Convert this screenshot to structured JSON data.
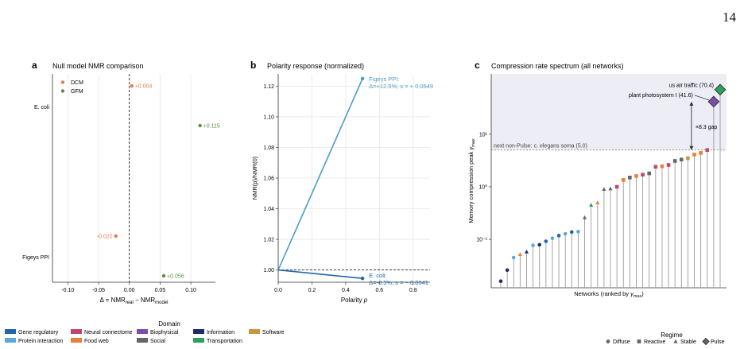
{
  "page_number": "14",
  "colors": {
    "dcm": "#E07B4F",
    "gfm": "#5A8F3D",
    "polarity_line": "#4A9CC9",
    "ecoli_line": "#2166AC",
    "shade": "#ECEDF5",
    "stem": "#9A9A9A",
    "zero_line": "#222222"
  },
  "panels": {
    "a": {
      "letter": "a",
      "title": "Null model NMR comparison"
    },
    "b": {
      "letter": "b",
      "title": "Polarity response (normalized)"
    },
    "c": {
      "letter": "c",
      "title": "Compression rate spectrum (all networks)"
    }
  },
  "legend_domain": {
    "title": "Domain",
    "items": [
      {
        "label": "Gene regulatory",
        "color": "#2166AC"
      },
      {
        "label": "Protein interaction",
        "color": "#5AA8DC"
      },
      {
        "label": "Neural connectome",
        "color": "#C0466E"
      },
      {
        "label": "Food web",
        "color": "#E8803A"
      },
      {
        "label": "Biophysical",
        "color": "#7B4FA8"
      },
      {
        "label": "Social",
        "color": "#666666"
      },
      {
        "label": "Information",
        "color": "#1F2A6B"
      },
      {
        "label": "Transportation",
        "color": "#2E9E5B"
      },
      {
        "label": "Software",
        "color": "#C8963E"
      }
    ]
  },
  "legend_regime": {
    "title": "Regime",
    "items": [
      {
        "label": "Diffuse",
        "shape": "circle"
      },
      {
        "label": "Reactive",
        "shape": "square"
      },
      {
        "label": "Stable",
        "shape": "triangle"
      },
      {
        "label": "Pulse",
        "shape": "diamond"
      }
    ]
  },
  "chart_data": [
    {
      "type": "scatter",
      "panel": "a",
      "title": "Null model NMR comparison",
      "xlabel": "Δ = NMR_real − NMR_model",
      "xlabel_parts": {
        "pre": "Δ = NMR",
        "sub1": "real",
        "mid": " − NMR",
        "sub2": "model"
      },
      "ylabel": "",
      "xlim": [
        -0.125,
        0.14
      ],
      "xticks": [
        "-0.10",
        "-0.05",
        "0.00",
        "0.05",
        "0.10"
      ],
      "xtick_values": [
        -0.1,
        -0.05,
        0.0,
        0.05,
        0.1
      ],
      "categories": [
        "E. coli",
        "Figeys PPI"
      ],
      "reference_line": 0,
      "grid": true,
      "legend_position": "top-left",
      "series": [
        {
          "name": "DCM",
          "color": "#E07B4F",
          "values": [
            0.004,
            -0.022
          ],
          "labels": [
            "+0.004",
            "-0.022"
          ]
        },
        {
          "name": "GFM",
          "color": "#5A8F3D",
          "values": [
            0.115,
            0.056
          ],
          "labels": [
            "+0.115",
            "+0.056"
          ]
        }
      ]
    },
    {
      "type": "line",
      "panel": "b",
      "title": "Polarity response (normalized)",
      "xlabel": "Polarity p",
      "xlabel_parts": {
        "pre": "Polarity ",
        "italic": "p"
      },
      "ylabel": "NMR(p)/NMR(0)",
      "xlim": [
        0.0,
        0.9
      ],
      "ylim": [
        0.992,
        1.128
      ],
      "xticks": [
        "0.0",
        "0.2",
        "0.4",
        "0.6",
        "0.8"
      ],
      "xtick_values": [
        0.0,
        0.2,
        0.4,
        0.6,
        0.8
      ],
      "yticks": [
        "1.00",
        "1.02",
        "1.04",
        "1.06",
        "1.08",
        "1.10",
        "1.12"
      ],
      "ytick_values": [
        1.0,
        1.02,
        1.04,
        1.06,
        1.08,
        1.1,
        1.12
      ],
      "reference_line": 1.0,
      "grid": true,
      "series": [
        {
          "name": "Figeys PPI",
          "color": "#4A9CC9",
          "x": [
            0.0,
            0.5
          ],
          "y": [
            1.0,
            1.125
          ],
          "annotation": [
            "Figeys PPI:",
            "Δ=+12.5%; s = + 0.0549"
          ]
        },
        {
          "name": "E. coli",
          "color": "#2166AC",
          "x": [
            0.0,
            0.5
          ],
          "y": [
            1.0,
            0.9945
          ],
          "annotation": [
            "E. coli:",
            "Δ=-0.5%; s = − 0.0041"
          ]
        }
      ]
    },
    {
      "type": "scatter",
      "panel": "c",
      "title": "Compression rate spectrum (all networks)",
      "xlabel": "Networks (ranked by γmax)",
      "xlabel_parts": {
        "pre": "Networks (ranked by ",
        "sym": "γ",
        "sub": "max",
        "post": ")"
      },
      "ylabel": "Memory compression peak γmax",
      "ylabel_parts": {
        "pre": "Memory compression peak ",
        "sym": "γ",
        "sub": "max"
      },
      "log_y": true,
      "ylim": [
        0.012,
        140
      ],
      "yticks": [
        "10⁻¹",
        "10⁰",
        "10¹"
      ],
      "ytick_values": [
        0.1,
        1,
        10
      ],
      "threshold": {
        "value": 5.0,
        "label": "next non-Pulse: c. elegans soma (5.0)"
      },
      "gap_label": "×8.3 gap",
      "annotations": [
        {
          "label": "us air traffic (70.4)",
          "target": 70.4
        },
        {
          "label": "plant photosystem I (41.6)",
          "target": 41.6
        }
      ],
      "points": [
        {
          "y": 0.016,
          "shape": "circle",
          "domain": "Information"
        },
        {
          "y": 0.026,
          "shape": "circle",
          "domain": "Information"
        },
        {
          "y": 0.045,
          "shape": "circle",
          "domain": "Protein interaction"
        },
        {
          "y": 0.052,
          "shape": "triangle",
          "domain": "Food web"
        },
        {
          "y": 0.058,
          "shape": "triangle",
          "domain": "Information"
        },
        {
          "y": 0.077,
          "shape": "circle",
          "domain": "Protein interaction"
        },
        {
          "y": 0.079,
          "shape": "circle",
          "domain": "Information"
        },
        {
          "y": 0.092,
          "shape": "circle",
          "domain": "Gene regulatory"
        },
        {
          "y": 0.105,
          "shape": "circle",
          "domain": "Protein interaction"
        },
        {
          "y": 0.118,
          "shape": "circle",
          "domain": "Gene regulatory"
        },
        {
          "y": 0.128,
          "shape": "circle",
          "domain": "Protein interaction"
        },
        {
          "y": 0.138,
          "shape": "circle",
          "domain": "Gene regulatory"
        },
        {
          "y": 0.14,
          "shape": "circle",
          "domain": "Protein interaction"
        },
        {
          "y": 0.26,
          "shape": "triangle",
          "domain": "Social"
        },
        {
          "y": 0.45,
          "shape": "triangle",
          "domain": "Transportation"
        },
        {
          "y": 0.5,
          "shape": "triangle",
          "domain": "Food web"
        },
        {
          "y": 0.9,
          "shape": "triangle",
          "domain": "Social"
        },
        {
          "y": 0.92,
          "shape": "triangle",
          "domain": "Social"
        },
        {
          "y": 1.0,
          "shape": "square",
          "domain": "Neural connectome"
        },
        {
          "y": 1.35,
          "shape": "square",
          "domain": "Food web"
        },
        {
          "y": 1.5,
          "shape": "square",
          "domain": "Social"
        },
        {
          "y": 1.6,
          "shape": "square",
          "domain": "Food web"
        },
        {
          "y": 1.7,
          "shape": "square",
          "domain": "Neural connectome"
        },
        {
          "y": 1.8,
          "shape": "square",
          "domain": "Social"
        },
        {
          "y": 2.4,
          "shape": "square",
          "domain": "Neural connectome"
        },
        {
          "y": 2.45,
          "shape": "square",
          "domain": "Food web"
        },
        {
          "y": 2.6,
          "shape": "square",
          "domain": "Neural connectome"
        },
        {
          "y": 3.1,
          "shape": "square",
          "domain": "Social"
        },
        {
          "y": 3.3,
          "shape": "square",
          "domain": "Social"
        },
        {
          "y": 3.5,
          "shape": "square",
          "domain": "Software"
        },
        {
          "y": 4.1,
          "shape": "square",
          "domain": "Food web"
        },
        {
          "y": 4.4,
          "shape": "square",
          "domain": "Food web"
        },
        {
          "y": 5.0,
          "shape": "square",
          "domain": "Neural connectome"
        },
        {
          "y": 41.6,
          "shape": "diamond",
          "domain": "Biophysical"
        },
        {
          "y": 70.4,
          "shape": "diamond",
          "domain": "Transportation"
        }
      ]
    }
  ]
}
